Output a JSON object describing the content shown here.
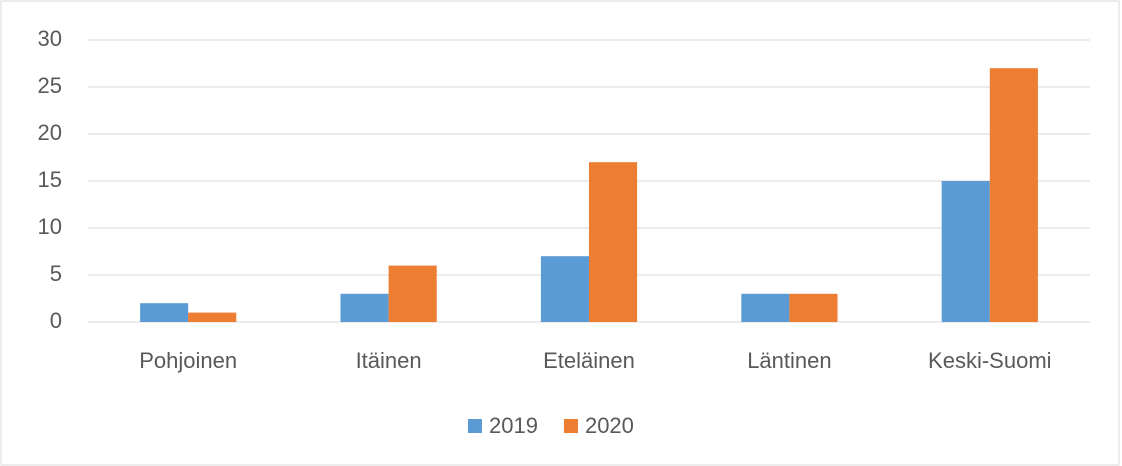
{
  "chart_data": {
    "type": "bar",
    "categories": [
      "Pohjoinen",
      "Itäinen",
      "Eteläinen",
      "Läntinen",
      "Keski-Suomi"
    ],
    "series": [
      {
        "name": "2019",
        "color": "#5b9bd5",
        "values": [
          2,
          3,
          7,
          3,
          15
        ]
      },
      {
        "name": "2020",
        "color": "#ed7d31",
        "values": [
          1,
          6,
          17,
          3,
          27
        ]
      }
    ],
    "ylim": [
      0,
      30
    ],
    "yticks": [
      0,
      5,
      10,
      15,
      20,
      25,
      30
    ],
    "grid": true,
    "legend": "bottom"
  }
}
